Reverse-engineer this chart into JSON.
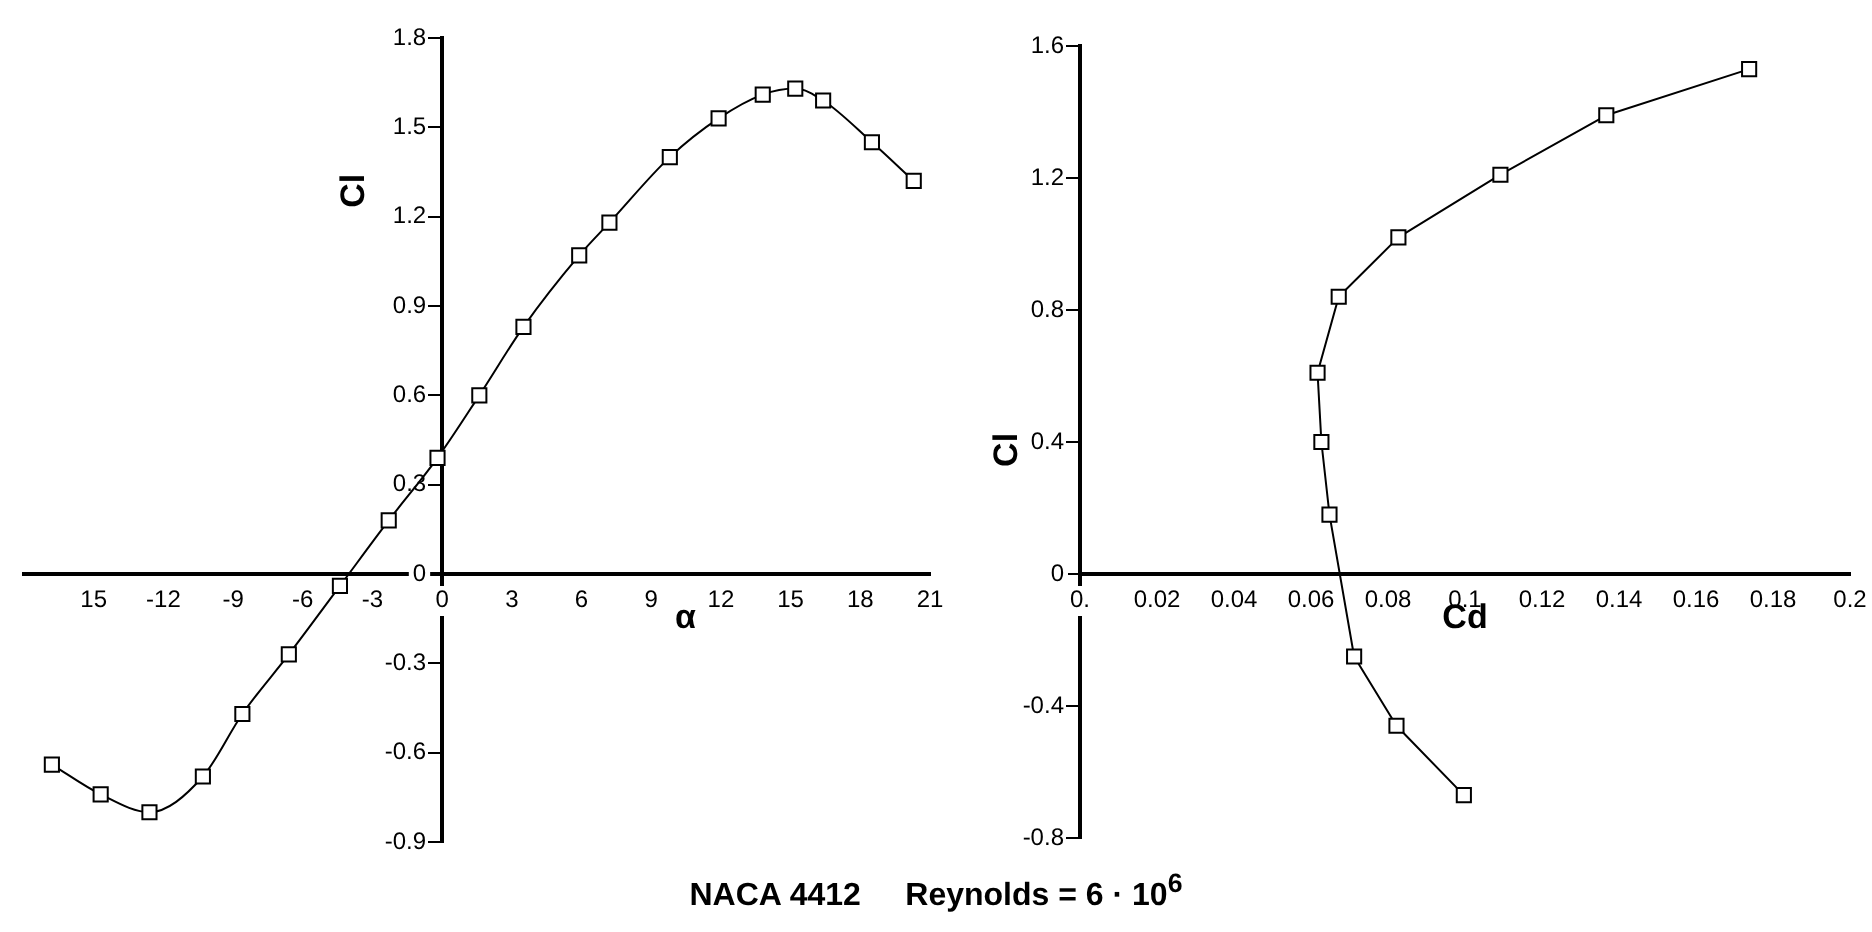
{
  "chart_data": [
    {
      "type": "line",
      "title": "NACA 4412     Reynolds = 6 · 10$^{6}$",
      "xlabel": "α",
      "ylabel": "Cl",
      "color": "#000000",
      "marker": "square",
      "x": [
        -16.8,
        -14.7,
        -12.6,
        -10.3,
        -8.6,
        -6.6,
        -4.4,
        -2.3,
        -0.2,
        1.6,
        3.5,
        5.9,
        7.2,
        9.8,
        11.9,
        13.8,
        15.2,
        16.4,
        18.5,
        20.3
      ],
      "values": [
        -0.64,
        -0.74,
        -0.8,
        -0.68,
        -0.47,
        -0.27,
        -0.04,
        0.18,
        0.39,
        0.6,
        0.83,
        1.07,
        1.18,
        1.4,
        1.53,
        1.61,
        1.63,
        1.59,
        1.45,
        1.32
      ],
      "xlim": [
        -18,
        21
      ],
      "ylim": [
        -0.9,
        1.8
      ],
      "xticks": [
        {
          "value": -15,
          "label": "15"
        },
        -12,
        -9,
        -6,
        -3,
        0,
        3,
        6,
        9,
        12,
        15,
        18,
        21
      ],
      "yticks": [
        -0.9,
        -0.6,
        -0.3,
        0,
        0.3,
        0.6,
        0.9,
        1.2,
        1.5,
        1.8
      ]
    },
    {
      "type": "line",
      "xlabel": "Cd",
      "ylabel": "Cl",
      "color": "#000000",
      "marker": "square",
      "x": [
        0.0997,
        0.0822,
        0.0712,
        0.0648,
        0.0627,
        0.0617,
        0.0672,
        0.0827,
        0.1092,
        0.1367,
        0.1738
      ],
      "values": [
        -0.67,
        -0.46,
        -0.25,
        0.18,
        0.4,
        0.61,
        0.84,
        1.02,
        1.21,
        1.39,
        1.53
      ],
      "xlim": [
        0,
        0.2
      ],
      "ylim": [
        -0.8,
        1.6
      ],
      "xticks": [
        {
          "value": 0,
          "label": "0."
        },
        0.02,
        0.04,
        0.06,
        0.08,
        0.1,
        0.12,
        0.14,
        0.16,
        0.18,
        0.2
      ],
      "yticks": [
        -0.8,
        -0.4,
        0,
        0.4,
        0.8,
        1.2,
        1.6
      ]
    }
  ]
}
